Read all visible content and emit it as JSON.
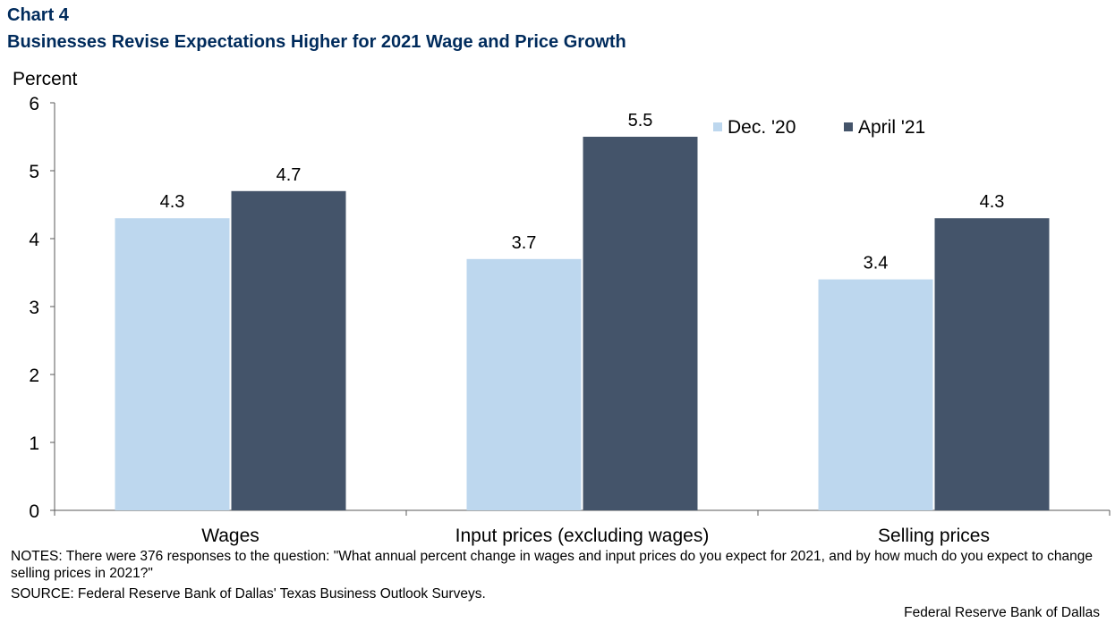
{
  "chart_label": "Chart 4",
  "notes": "NOTES: There were 376 responses to the question: \"What annual percent change in wages and input prices do you expect for 2021, and by how much do you expect to change selling prices in 2021?\"",
  "source": "SOURCE: Federal Reserve Bank of Dallas' Texas Business Outlook Surveys.",
  "credit": "Federal Reserve Bank of Dallas",
  "chart_data": {
    "type": "bar",
    "title": "Businesses Revise Expectations Higher for 2021 Wage and Price Growth",
    "ylabel": "Percent",
    "xlabel": "",
    "categories": [
      "Wages",
      "Input prices (excluding wages)",
      "Selling prices"
    ],
    "series": [
      {
        "name": "Dec. '20",
        "values": [
          4.3,
          3.7,
          3.4
        ],
        "color": "#bdd7ee"
      },
      {
        "name": "April '21",
        "values": [
          4.7,
          5.5,
          4.3
        ],
        "color": "#44546a"
      }
    ],
    "ylim": [
      0,
      6
    ],
    "yticks": [
      0,
      1,
      2,
      3,
      4,
      5,
      6
    ],
    "data_labels": true,
    "grid": false,
    "legend_position": "top-right"
  }
}
